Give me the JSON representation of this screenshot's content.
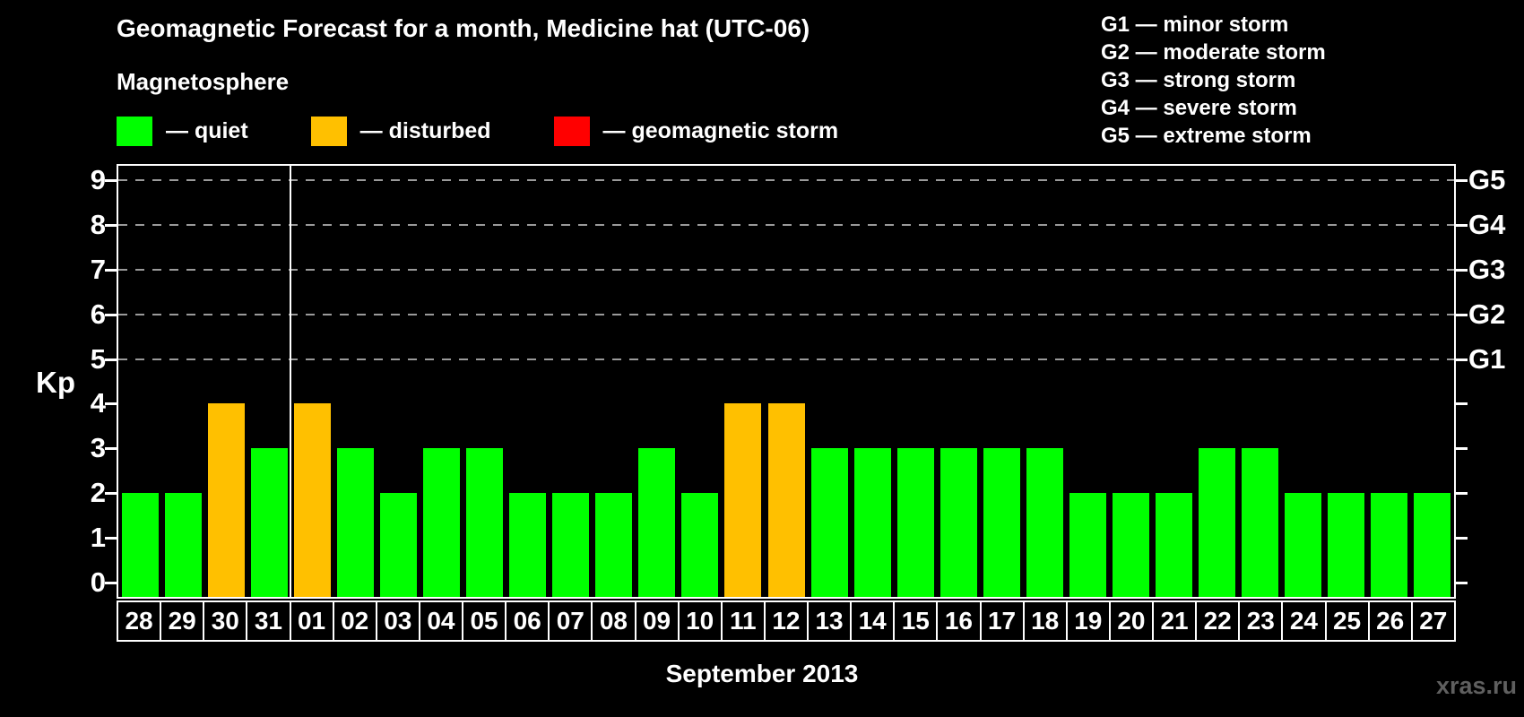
{
  "header": {
    "title": "Geomagnetic Forecast for a month, Medicine hat (UTC-06)",
    "subtitle": "Magnetosphere"
  },
  "legend": {
    "items": [
      {
        "name": "quiet",
        "label": "— quiet",
        "color": "#00ff00"
      },
      {
        "name": "disturbed",
        "label": "— disturbed",
        "color": "#ffc000"
      },
      {
        "name": "storm",
        "label": "— geomagnetic storm",
        "color": "#ff0000"
      }
    ]
  },
  "storm_scale_legend": {
    "items": [
      "G1 — minor storm",
      "G2 — moderate storm",
      "G3 — strong storm",
      "G4 — severe storm",
      "G5 — extreme storm"
    ]
  },
  "chart_data": {
    "type": "bar",
    "title": "Geomagnetic Forecast for a month, Medicine hat (UTC-06)",
    "ylabel": "Kp",
    "xlabel": "September 2013",
    "ylim": [
      0,
      9.4
    ],
    "yticks": [
      0,
      1,
      2,
      3,
      4,
      5,
      6,
      7,
      8,
      9
    ],
    "gridlines_at": [
      5,
      6,
      7,
      8,
      9
    ],
    "grid_color": "#9a9a9a",
    "right_axis": [
      {
        "label": "G1",
        "kp": 5
      },
      {
        "label": "G2",
        "kp": 6
      },
      {
        "label": "G3",
        "kp": 7
      },
      {
        "label": "G4",
        "kp": 8
      },
      {
        "label": "G5",
        "kp": 9
      }
    ],
    "categories": [
      "28",
      "29",
      "30",
      "31",
      "01",
      "02",
      "03",
      "04",
      "05",
      "06",
      "07",
      "08",
      "09",
      "10",
      "11",
      "12",
      "13",
      "14",
      "15",
      "16",
      "17",
      "18",
      "19",
      "20",
      "21",
      "22",
      "23",
      "24",
      "25",
      "26",
      "27"
    ],
    "values": [
      2,
      2,
      4,
      3,
      4,
      3,
      2,
      3,
      3,
      2,
      2,
      2,
      3,
      2,
      4,
      4,
      3,
      3,
      3,
      3,
      3,
      3,
      2,
      2,
      2,
      3,
      3,
      2,
      2,
      2,
      2
    ],
    "statuses": [
      "quiet",
      "quiet",
      "disturbed",
      "quiet",
      "disturbed",
      "quiet",
      "quiet",
      "quiet",
      "quiet",
      "quiet",
      "quiet",
      "quiet",
      "quiet",
      "quiet",
      "disturbed",
      "disturbed",
      "quiet",
      "quiet",
      "quiet",
      "quiet",
      "quiet",
      "quiet",
      "quiet",
      "quiet",
      "quiet",
      "quiet",
      "quiet",
      "quiet",
      "quiet",
      "quiet",
      "quiet"
    ],
    "status_colors": {
      "quiet": "#00ff00",
      "disturbed": "#ffc000",
      "storm": "#ff0000"
    },
    "month_separator_after_index": 3,
    "legend_position": "top"
  },
  "footer": {
    "caption": "September 2013",
    "watermark": "xras.ru"
  }
}
